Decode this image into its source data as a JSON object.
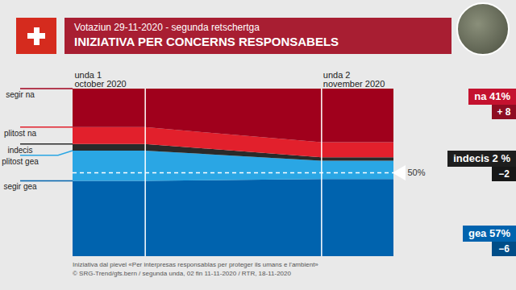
{
  "chart_data": {
    "type": "area",
    "stacked": true,
    "subtitle": "Votaziun 29-11-2020 - segunda retschertga",
    "title": "INIZIATIVA PER CONCERNS RESPONSABELS",
    "categories": [
      "unda 1\noctober 2020",
      "unda 2\nnovember 2020"
    ],
    "series": [
      {
        "name": "segir na",
        "color": "#a0001c",
        "values": [
          23,
          32
        ]
      },
      {
        "name": "plitost na",
        "color": "#e2202c",
        "values": [
          10,
          9
        ]
      },
      {
        "name": "indecis",
        "color": "#2a2a2a",
        "values": [
          4,
          2
        ]
      },
      {
        "name": "plitost gea",
        "color": "#2aa6e4",
        "values": [
          18,
          11
        ]
      },
      {
        "name": "segir gea",
        "color": "#0063ae",
        "values": [
          45,
          46
        ]
      }
    ],
    "ylim": [
      0,
      100
    ],
    "yticks": [
      {
        "value": 50,
        "label": "50%"
      }
    ],
    "grid": true,
    "results": [
      {
        "label": "na",
        "value": 41,
        "value_label": "41%",
        "change": 8,
        "change_label": "+ 8",
        "color": "#c4122f"
      },
      {
        "label": "indecis",
        "value": 2,
        "value_label": "2 %",
        "change": -2,
        "change_label": "−2",
        "color": "#1e1e1e"
      },
      {
        "label": "gea",
        "value": 57,
        "value_label": "57%",
        "change": -6,
        "change_label": "−6",
        "color": "#0063ae"
      }
    ],
    "caption": [
      "Iniziativa dal pievel «Per interpresas responsablas per proteger ils umans e l'ambient»",
      "© SRG-Trend/gfs.bern  /  segunda unda, 02 fin 11-11-2020  /  RTR, 18-11-2020"
    ]
  }
}
